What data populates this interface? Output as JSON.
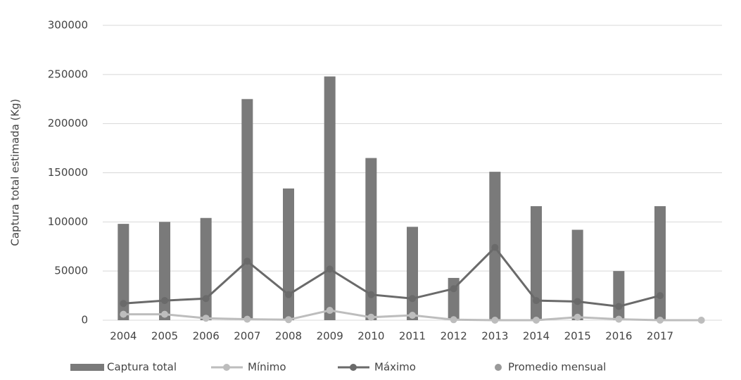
{
  "chart_data": {
    "type": "bar",
    "y_label": "Captura total estimada (Kg)",
    "categories": [
      "2004",
      "2005",
      "2006",
      "2007",
      "2008",
      "2009",
      "2010",
      "2011",
      "2012",
      "2013",
      "2014",
      "2015",
      "2016",
      "2017",
      null
    ],
    "series": [
      {
        "name": "Captura total",
        "type": "bar",
        "color": "#7a7a7a",
        "values": [
          98000,
          100000,
          104000,
          225000,
          134000,
          248000,
          165000,
          95000,
          43000,
          151000,
          116000,
          92000,
          50000,
          116000,
          null
        ]
      },
      {
        "name": "Mínimo",
        "type": "line",
        "color": "#bdbdbd",
        "values": [
          6000,
          6000,
          2000,
          1000,
          500,
          10000,
          3000,
          5000,
          500,
          0,
          0,
          3000,
          1000,
          0,
          0
        ]
      },
      {
        "name": "Máximo",
        "type": "line",
        "color": "#6a6a6a",
        "values": [
          17000,
          20000,
          22000,
          60000,
          26000,
          52000,
          26000,
          22000,
          32000,
          74000,
          20000,
          19000,
          14000,
          25000,
          null
        ]
      },
      {
        "name": "Promedio mensual",
        "type": "scatter",
        "color": "#9a9a9a",
        "values": [
          null,
          null,
          null,
          null,
          null,
          null,
          null,
          null,
          null,
          null,
          null,
          null,
          null,
          null,
          null
        ]
      }
    ],
    "ylim": [
      0,
      300000
    ],
    "yticks": [
      0,
      50000,
      100000,
      150000,
      200000,
      250000,
      300000
    ],
    "grid": true
  }
}
